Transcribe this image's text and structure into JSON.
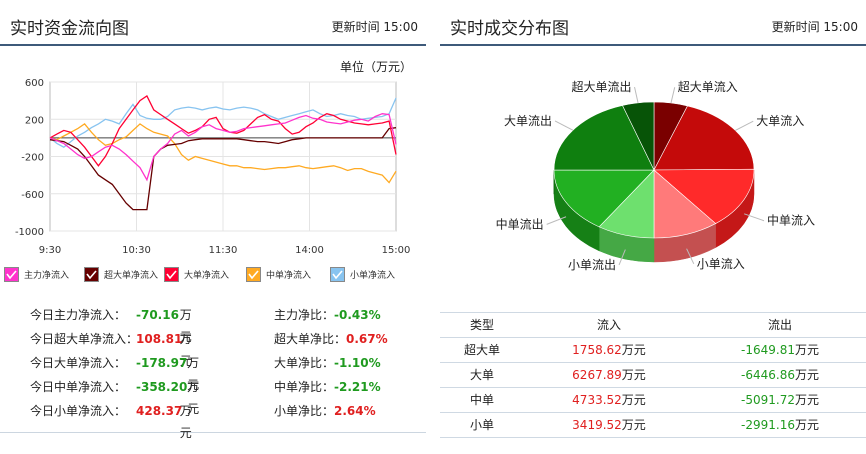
{
  "left_panel": {
    "title": "实时资金流向图",
    "update_label": "更新时间",
    "update_time": "15:00",
    "unit": "单位（万元）",
    "legend": [
      {
        "label": "主力净流入",
        "color": "#ff33cc"
      },
      {
        "label": "超大单净流入",
        "color": "#660000"
      },
      {
        "label": "大单净流入",
        "color": "#ff0033"
      },
      {
        "label": "中单净流入",
        "color": "#ffaa22"
      },
      {
        "label": "小单净流入",
        "color": "#88c4f0"
      }
    ],
    "stats": [
      {
        "label": "今日主力净流入：",
        "value": "-70.16",
        "unit": "万元",
        "sign": "neg",
        "ratio_label": "主力净比：",
        "ratio": "-0.43%",
        "ratio_sign": "neg"
      },
      {
        "label": "今日超大单净流入：",
        "value": "108.81",
        "unit": "万元",
        "sign": "pos",
        "ratio_label": "超大单净比：",
        "ratio": "0.67%",
        "ratio_sign": "pos"
      },
      {
        "label": "今日大单净流入：",
        "value": "-178.97",
        "unit": "万元",
        "sign": "neg",
        "ratio_label": "大单净比：",
        "ratio": "-1.10%",
        "ratio_sign": "neg"
      },
      {
        "label": "今日中单净流入：",
        "value": "-358.20",
        "unit": "万元",
        "sign": "neg",
        "ratio_label": "中单净比：",
        "ratio": "-2.21%",
        "ratio_sign": "neg"
      },
      {
        "label": "今日小单净流入：",
        "value": "428.37",
        "unit": "万元",
        "sign": "pos",
        "ratio_label": "小单净比：",
        "ratio": "2.64%",
        "ratio_sign": "pos"
      }
    ]
  },
  "right_panel": {
    "title": "实时成交分布图",
    "update_label": "更新时间",
    "update_time": "15:00",
    "table": {
      "headers": [
        "类型",
        "流入",
        "流出"
      ],
      "unit": "万元",
      "rows": [
        {
          "type": "超大单",
          "in": "1758.62",
          "out": "-1649.81"
        },
        {
          "type": "大单",
          "in": "6267.89",
          "out": "-6446.86"
        },
        {
          "type": "中单",
          "in": "4733.52",
          "out": "-5091.72"
        },
        {
          "type": "小单",
          "in": "3419.52",
          "out": "-2991.16"
        }
      ]
    }
  },
  "chart_data": [
    {
      "type": "line",
      "ylim": [
        -1000,
        600
      ],
      "yticks": [
        "600",
        "200",
        "-200",
        "-600",
        "-1000"
      ],
      "ytick_values": [
        600,
        200,
        -200,
        -600,
        -1000
      ],
      "xticks": [
        "9:30",
        "10:30",
        "11:30",
        "14:00",
        "15:00"
      ],
      "grid": true,
      "legend_position": "bottom",
      "series": [
        {
          "name": "主力净流入",
          "color": "#ff33cc",
          "values": [
            0,
            -30,
            -60,
            -120,
            -180,
            -220,
            -200,
            -150,
            -100,
            -80,
            -120,
            -180,
            -250,
            -320,
            -450,
            -200,
            -120,
            -60,
            40,
            80,
            20,
            60,
            120,
            140,
            100,
            80,
            60,
            70,
            100,
            110,
            120,
            130,
            140,
            150,
            160,
            190,
            220,
            240,
            210,
            200,
            170,
            160,
            150,
            170,
            190,
            200,
            180,
            230,
            260,
            250,
            -70
          ]
        },
        {
          "name": "超大单净流入",
          "color": "#660000",
          "values": [
            -20,
            -30,
            -40,
            -80,
            -120,
            -200,
            -300,
            -400,
            -450,
            -500,
            -600,
            -700,
            -770,
            -770,
            -770,
            -200,
            -120,
            -80,
            -70,
            -60,
            -30,
            -20,
            -10,
            -10,
            -10,
            -10,
            -10,
            -10,
            -20,
            -30,
            -40,
            -40,
            -50,
            -60,
            -40,
            -20,
            -10,
            0,
            0,
            0,
            0,
            0,
            0,
            0,
            0,
            0,
            0,
            0,
            0,
            100,
            109
          ]
        },
        {
          "name": "大单净流入",
          "color": "#ff0033",
          "values": [
            0,
            40,
            80,
            60,
            -20,
            -100,
            -200,
            -300,
            -200,
            -60,
            100,
            200,
            300,
            400,
            450,
            300,
            250,
            200,
            150,
            100,
            50,
            80,
            120,
            200,
            220,
            100,
            60,
            50,
            80,
            150,
            220,
            250,
            200,
            180,
            100,
            40,
            60,
            120,
            160,
            220,
            260,
            240,
            200,
            180,
            160,
            150,
            140,
            150,
            160,
            180,
            -179
          ]
        },
        {
          "name": "中单净流入",
          "color": "#ffaa22",
          "values": [
            0,
            -20,
            20,
            60,
            100,
            150,
            60,
            -20,
            -80,
            -60,
            -20,
            10,
            80,
            150,
            100,
            60,
            40,
            20,
            -60,
            -180,
            -240,
            -200,
            -220,
            -240,
            -260,
            -280,
            -300,
            -300,
            -320,
            -320,
            -330,
            -340,
            -330,
            -320,
            -320,
            -310,
            -300,
            -320,
            -330,
            -320,
            -310,
            -300,
            -320,
            -350,
            -330,
            -330,
            -360,
            -380,
            -400,
            -480,
            -358
          ]
        },
        {
          "name": "小单净流入",
          "color": "#88c4f0",
          "values": [
            0,
            -60,
            -100,
            -40,
            20,
            60,
            110,
            150,
            200,
            180,
            150,
            260,
            360,
            240,
            210,
            200,
            200,
            230,
            300,
            320,
            330,
            320,
            300,
            320,
            330,
            310,
            300,
            320,
            330,
            320,
            300,
            260,
            230,
            200,
            220,
            240,
            260,
            280,
            300,
            260,
            230,
            240,
            260,
            240,
            230,
            200,
            210,
            220,
            230,
            260,
            428
          ]
        }
      ]
    },
    {
      "type": "pie",
      "title": "",
      "categories": [
        "超大单流入",
        "大单流入",
        "中单流入",
        "小单流入",
        "小单流出",
        "中单流出",
        "大单流出",
        "超大单流出"
      ],
      "values": [
        1758.62,
        6267.89,
        4733.52,
        3419.52,
        2991.16,
        5091.72,
        6446.86,
        1649.81
      ],
      "colors": [
        "#7a0000",
        "#c40a0a",
        "#ff2a2a",
        "#ff7a7a",
        "#6ee06e",
        "#22b022",
        "#0f7f0f",
        "#075407"
      ],
      "side_colors": [
        "#4a0000",
        "#8a0606",
        "#c41818",
        "#c45050",
        "#45a845",
        "#168016",
        "#0a5a0a",
        "#043504"
      ]
    }
  ]
}
